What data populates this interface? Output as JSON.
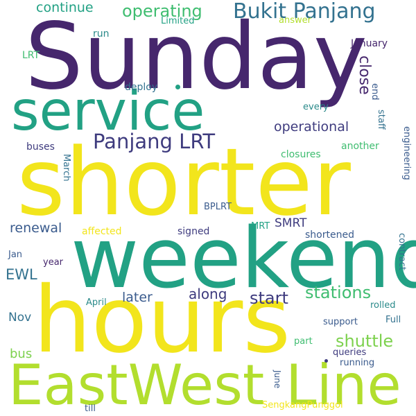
{
  "palette": {
    "purple": "#46276d",
    "indigo": "#3e3b7e",
    "blue": "#3a5b8d",
    "steel": "#33728f",
    "teal": "#2a8a8a",
    "sea": "#22a184",
    "green": "#3fbd70",
    "lime": "#7dd14e",
    "yellowgreen": "#b2de2e",
    "yellow": "#f2e51c",
    "background": "#ffffff"
  },
  "words": {
    "sunday": "Sunday",
    "service": "service",
    "shorter": "shorter",
    "weekend": "weekend",
    "hours": "hours",
    "east_west": "EastWest",
    "line": "Line",
    "bukit_panjang": "Bukit Panjang",
    "operating": "operating",
    "continue": "continue",
    "panjang_lrt": "Panjang LRT",
    "close": "close",
    "operational": "operational",
    "january": "January",
    "end": "end",
    "staff": "staff",
    "every": "every",
    "another": "another",
    "engineering": "engineering",
    "closures": "closures",
    "buses": "buses",
    "march": "March",
    "deploy": "deploy",
    "run": "run",
    "limited": "Limited",
    "answer": "answer",
    "lrt": "LRT",
    "bplrt": "BPLRT",
    "renewal": "renewal",
    "affected": "affected",
    "signed": "signed",
    "mrt": "MRT",
    "smrt": "SMRT",
    "shortened": "shortened",
    "jan": "Jan",
    "year": "year",
    "ewl": "EWL",
    "contract": "contract",
    "later": "later",
    "along": "along",
    "start": "start",
    "stations": "stations",
    "april": "April",
    "rolled": "rolled",
    "nov": "Nov",
    "support": "support",
    "full": "Full",
    "shuttle": "shuttle",
    "bus": "bus",
    "part": "part",
    "queries": "queries",
    "running": "running",
    "june": "June",
    "sengkang_punggol": "SengkangPunggol",
    "till": "till"
  }
}
